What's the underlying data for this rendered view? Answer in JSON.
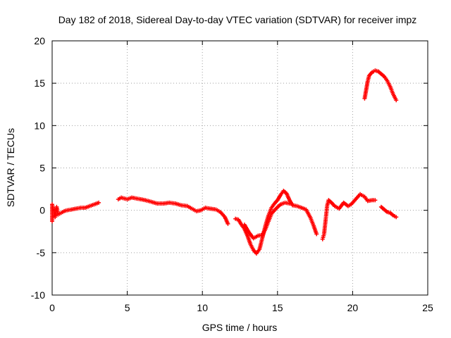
{
  "chart_data": {
    "type": "scatter",
    "title": "Day 182 of 2018, Sidereal Day-to-day VTEC variation (SDTVAR) for receiver impz",
    "xlabel": "GPS time / hours",
    "ylabel": "SDTVAR / TECUs",
    "xlim": [
      0,
      25
    ],
    "ylim": [
      -10,
      20
    ],
    "xticks": [
      "0",
      "5",
      "10",
      "15",
      "20",
      "25"
    ],
    "yticks": [
      "-10",
      "-5",
      "0",
      "5",
      "10",
      "15",
      "20"
    ],
    "grid": true,
    "marker": "+",
    "color": "#ff0000",
    "series": [
      {
        "name": "SDTVAR",
        "segments": [
          [
            [
              0.0,
              -1.3
            ],
            [
              0.0,
              0.7
            ],
            [
              0.2,
              -0.8
            ],
            [
              0.3,
              0.4
            ],
            [
              0.4,
              -0.5
            ],
            [
              0.6,
              -0.3
            ],
            [
              0.8,
              -0.1
            ],
            [
              1.0,
              0.0
            ],
            [
              1.3,
              0.1
            ],
            [
              1.6,
              0.2
            ],
            [
              1.9,
              0.3
            ],
            [
              2.2,
              0.3
            ],
            [
              2.5,
              0.5
            ],
            [
              2.8,
              0.7
            ],
            [
              3.1,
              0.9
            ]
          ],
          [
            [
              4.4,
              1.3
            ],
            [
              4.6,
              1.5
            ],
            [
              4.8,
              1.4
            ],
            [
              5.0,
              1.3
            ],
            [
              5.3,
              1.5
            ],
            [
              5.6,
              1.4
            ],
            [
              5.9,
              1.3
            ],
            [
              6.2,
              1.2
            ],
            [
              6.6,
              1.0
            ],
            [
              7.0,
              0.8
            ],
            [
              7.4,
              0.8
            ],
            [
              7.8,
              0.9
            ],
            [
              8.2,
              0.8
            ],
            [
              8.6,
              0.6
            ],
            [
              9.0,
              0.5
            ],
            [
              9.3,
              0.2
            ],
            [
              9.6,
              -0.1
            ],
            [
              9.9,
              0.0
            ],
            [
              10.2,
              0.3
            ],
            [
              10.5,
              0.2
            ],
            [
              10.9,
              0.1
            ],
            [
              11.2,
              -0.2
            ],
            [
              11.5,
              -0.8
            ],
            [
              11.7,
              -1.6
            ]
          ],
          [
            [
              12.2,
              -1.0
            ],
            [
              12.4,
              -1.1
            ],
            [
              12.6,
              -1.7
            ],
            [
              12.8,
              -2.2
            ],
            [
              13.0,
              -3.0
            ],
            [
              13.2,
              -4.0
            ],
            [
              13.4,
              -4.7
            ],
            [
              13.6,
              -5.1
            ],
            [
              13.8,
              -4.6
            ],
            [
              14.0,
              -3.2
            ],
            [
              14.2,
              -1.8
            ],
            [
              14.4,
              -0.6
            ],
            [
              14.6,
              0.3
            ],
            [
              14.8,
              0.8
            ],
            [
              15.0,
              1.2
            ],
            [
              15.2,
              1.8
            ],
            [
              15.4,
              2.3
            ],
            [
              15.6,
              2.0
            ],
            [
              15.8,
              1.2
            ],
            [
              16.0,
              0.6
            ],
            [
              16.3,
              0.5
            ],
            [
              16.6,
              0.3
            ],
            [
              16.9,
              0.1
            ],
            [
              17.2,
              -0.9
            ],
            [
              17.4,
              -1.8
            ],
            [
              17.6,
              -2.8
            ]
          ],
          [
            [
              12.8,
              -1.7
            ],
            [
              13.1,
              -2.6
            ],
            [
              13.4,
              -3.3
            ],
            [
              13.7,
              -3.0
            ],
            [
              14.0,
              -2.9
            ],
            [
              14.2,
              -2.2
            ],
            [
              14.4,
              -1.3
            ],
            [
              14.6,
              -0.4
            ],
            [
              14.9,
              0.2
            ],
            [
              15.2,
              0.7
            ],
            [
              15.5,
              0.9
            ],
            [
              15.8,
              0.8
            ]
          ],
          [
            [
              18.0,
              -3.4
            ],
            [
              18.1,
              -2.8
            ],
            [
              18.2,
              -1.2
            ],
            [
              18.3,
              0.5
            ],
            [
              18.4,
              1.2
            ],
            [
              18.6,
              0.9
            ],
            [
              18.8,
              0.5
            ],
            [
              19.1,
              0.2
            ],
            [
              19.4,
              0.9
            ],
            [
              19.7,
              0.5
            ],
            [
              19.9,
              0.7
            ],
            [
              20.2,
              1.3
            ],
            [
              20.5,
              1.9
            ],
            [
              20.8,
              1.6
            ],
            [
              21.0,
              1.1
            ],
            [
              21.3,
              1.2
            ],
            [
              21.5,
              1.2
            ]
          ],
          [
            [
              21.9,
              0.4
            ],
            [
              22.1,
              0.1
            ],
            [
              22.3,
              -0.2
            ],
            [
              22.5,
              -0.3
            ],
            [
              22.7,
              -0.6
            ],
            [
              22.9,
              -0.8
            ]
          ],
          [
            [
              20.8,
              13.2
            ],
            [
              20.9,
              14.2
            ],
            [
              21.0,
              15.2
            ],
            [
              21.1,
              15.9
            ],
            [
              21.3,
              16.3
            ],
            [
              21.5,
              16.5
            ],
            [
              21.7,
              16.4
            ],
            [
              21.9,
              16.1
            ],
            [
              22.1,
              15.8
            ],
            [
              22.3,
              15.3
            ],
            [
              22.5,
              14.6
            ],
            [
              22.7,
              13.7
            ],
            [
              22.9,
              13.0
            ]
          ]
        ]
      }
    ]
  }
}
